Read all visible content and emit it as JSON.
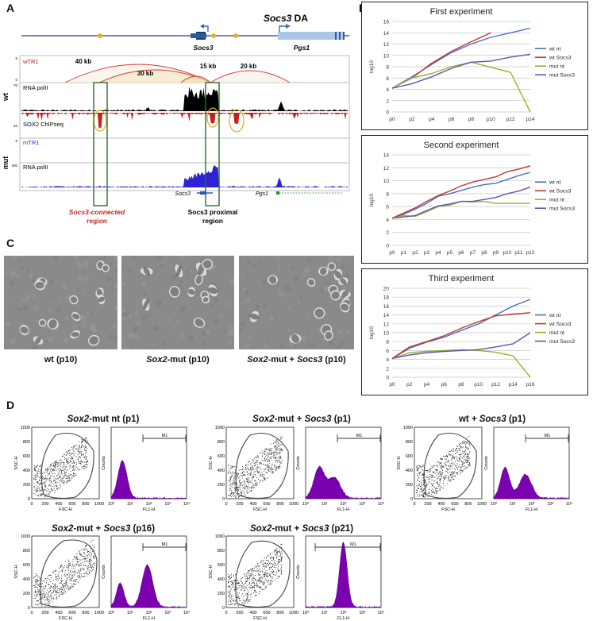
{
  "panels": {
    "A": {
      "letter": "A",
      "title": "Socs3 DA",
      "genes": [
        "Socs3",
        "Pgs1"
      ],
      "tracks": {
        "wtr1": "wTR1",
        "rnapol": "RNA polII",
        "sox2": "SOX2 ChIPseq",
        "mtr1": "mTR1",
        "rnapol_mut": "RNA polII"
      },
      "group_labels": {
        "wt": "wt",
        "mut": "mut"
      },
      "arc_labels": [
        "40 kb",
        "30 kb",
        "15 kb",
        "20 kb"
      ],
      "region_labels": {
        "connected_line1": "Socs3-connected",
        "connected_line2": "region",
        "proximal_line1": "Socs3 proximal",
        "proximal_line2": "region"
      },
      "small_axis": {
        "wt_top": "5",
        "wt_mid": "0",
        "rna_top": "70",
        "sox_top": "-10",
        "mut_top": "5",
        "rna_mut_top": "200"
      },
      "colors": {
        "connected_red": "#cc2222",
        "green": "#2e6b2e",
        "yellow": "#e0b020",
        "wt_red": "#cc2222",
        "mut_blue": "#3a2dd0"
      }
    },
    "B": {
      "letter": "B"
    },
    "C": {
      "letter": "C",
      "captions": [
        "wt (p10)",
        "Sox2-mut (p10)",
        "Sox2-mut + Socs3 (p10)"
      ]
    },
    "D": {
      "letter": "D",
      "plots": [
        {
          "title": "Sox2-mut nt (p1)"
        },
        {
          "title": "Sox2-mut + Socs3 (p1)"
        },
        {
          "title": "wt + Socs3 (p1)"
        },
        {
          "title": "Sox2-mut + Socs3 (p16)"
        },
        {
          "title": "Sox2-mut + Socs3 (p21)"
        }
      ],
      "axes": {
        "ssc": "SSC-H",
        "fsc": "FSC-H",
        "counts": "Counts",
        "fl1": "FL1-H",
        "marker": "M1",
        "fsc_ticks": [
          "0",
          "200",
          "400",
          "600",
          "800",
          "1000"
        ],
        "ssc_ticks": [
          "0",
          "200",
          "400",
          "600",
          "800",
          "1000"
        ],
        "fl_ticks": [
          "10⁰",
          "10¹",
          "10²",
          "10³",
          "10⁴"
        ]
      },
      "colors": {
        "histogram": "#7a00b0"
      }
    }
  },
  "chart_data": [
    {
      "type": "line",
      "title": "First experiment",
      "ylabel": "log10",
      "x": [
        "p0",
        "p2",
        "p4",
        "p6",
        "p8",
        "p10",
        "p12",
        "p14"
      ],
      "ylim": [
        0,
        16
      ],
      "yticks": [
        0,
        2,
        4,
        6,
        8,
        10,
        12,
        14,
        16
      ],
      "series": [
        {
          "name": "wt nt",
          "color": "#4a6fc0",
          "values": [
            4.2,
            6.2,
            8.4,
            10.5,
            12.0,
            13.2,
            14.0,
            14.8
          ]
        },
        {
          "name": "wt Socs3",
          "color": "#c0392b",
          "values": [
            4.2,
            6.0,
            8.6,
            10.7,
            12.4,
            14.0,
            null,
            null
          ]
        },
        {
          "name": "mut nt",
          "color": "#8ab82a",
          "values": [
            4.2,
            6.0,
            6.8,
            8.0,
            8.8,
            7.9,
            7.0,
            0
          ]
        },
        {
          "name": "mut Socs3",
          "color": "#6a4fb0",
          "values": [
            4.2,
            5.0,
            6.2,
            7.7,
            8.8,
            9.0,
            9.7,
            10.2
          ]
        }
      ]
    },
    {
      "type": "line",
      "title": "Second experiment",
      "ylabel": "log10",
      "x": [
        "p0",
        "p1",
        "p2",
        "p3",
        "p4",
        "p5",
        "p6",
        "p7",
        "p8",
        "p9",
        "p10",
        "p11",
        "p12"
      ],
      "ylim": [
        0,
        14
      ],
      "yticks": [
        0,
        2,
        4,
        6,
        8,
        10,
        12,
        14
      ],
      "series": [
        {
          "name": "wt nt",
          "color": "#4a6fc0",
          "values": [
            4.2,
            4.8,
            5.6,
            6.5,
            7.6,
            8.0,
            8.5,
            9.0,
            9.4,
            9.6,
            10.2,
            10.8,
            11.3
          ]
        },
        {
          "name": "wt Socs3",
          "color": "#c0392b",
          "values": [
            4.2,
            5.0,
            5.8,
            6.8,
            7.7,
            8.4,
            9.2,
            9.8,
            10.2,
            10.6,
            11.4,
            11.8,
            12.3
          ]
        },
        {
          "name": "mut nt",
          "color": "#8ab82a",
          "values": [
            4.2,
            4.6,
            4.5,
            5.2,
            6.0,
            6.2,
            6.8,
            6.7,
            6.8,
            6.5,
            6.5,
            6.5,
            6.5
          ]
        },
        {
          "name": "mut Socs3",
          "color": "#6a4fb0",
          "values": [
            4.2,
            4.4,
            4.6,
            5.4,
            6.1,
            6.4,
            6.8,
            6.8,
            7.1,
            7.4,
            8.0,
            8.4,
            9.0
          ]
        }
      ]
    },
    {
      "type": "line",
      "title": "Third experiment",
      "ylabel": "log10",
      "x": [
        "p0",
        "p2",
        "p4",
        "p6",
        "p8",
        "p10",
        "p12",
        "p14",
        "p16"
      ],
      "ylim": [
        0,
        20
      ],
      "yticks": [
        0,
        2,
        4,
        6,
        8,
        10,
        12,
        14,
        16,
        18,
        20
      ],
      "series": [
        {
          "name": "wt nt",
          "color": "#4a6fc0",
          "values": [
            4.2,
            6.5,
            7.9,
            9.0,
            10.5,
            12.0,
            14.0,
            16.0,
            17.5
          ]
        },
        {
          "name": "wt Socs3",
          "color": "#c0392b",
          "values": [
            4.2,
            6.8,
            8.0,
            9.3,
            11.0,
            12.5,
            13.8,
            14.2,
            14.5
          ]
        },
        {
          "name": "mut nt",
          "color": "#8ab82a",
          "values": [
            4.2,
            5.5,
            5.8,
            6.0,
            6.2,
            6.0,
            5.6,
            4.8,
            0
          ]
        },
        {
          "name": "mut Socs3",
          "color": "#6a4fb0",
          "values": [
            4.2,
            5.0,
            5.5,
            5.8,
            6.0,
            6.2,
            6.8,
            7.5,
            10.0
          ]
        }
      ]
    }
  ]
}
